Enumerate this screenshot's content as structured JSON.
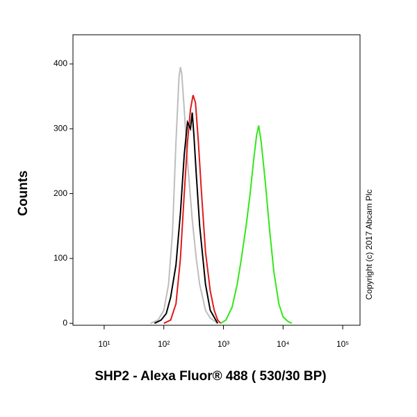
{
  "chart_data": {
    "type": "line",
    "xlabel": "SHP2 - Alexa Fluor® 488 ( 530/30 BP)",
    "ylabel": "Counts",
    "annotation": "Copyright (c) 2017 Abcam Plc",
    "log_x": true,
    "xlim": [
      3,
      195000
    ],
    "ylim": [
      -3,
      445
    ],
    "xticks": [
      {
        "value": 10,
        "label": "10¹"
      },
      {
        "value": 100,
        "label": "10²"
      },
      {
        "value": 1000,
        "label": "10³"
      },
      {
        "value": 10000,
        "label": "10⁴"
      },
      {
        "value": 100000,
        "label": "10⁵"
      }
    ],
    "yticks": [
      0,
      100,
      200,
      300,
      400
    ],
    "series": [
      {
        "color": "#bdbdbd",
        "x": [
          60,
          80,
          100,
          120,
          140,
          160,
          180,
          190,
          200,
          220,
          250,
          300,
          350,
          400,
          500,
          600,
          800
        ],
        "values": [
          0,
          5,
          20,
          60,
          140,
          280,
          380,
          395,
          385,
          330,
          250,
          160,
          100,
          60,
          20,
          8,
          0
        ]
      },
      {
        "color": "#e0191b",
        "x": [
          100,
          130,
          160,
          190,
          220,
          250,
          280,
          310,
          340,
          380,
          430,
          500,
          600,
          700,
          800,
          900
        ],
        "values": [
          0,
          5,
          30,
          100,
          200,
          280,
          330,
          352,
          340,
          280,
          200,
          110,
          50,
          20,
          5,
          0
        ]
      },
      {
        "color": "#000000",
        "x": [
          70,
          90,
          110,
          130,
          160,
          190,
          220,
          250,
          280,
          300,
          320,
          350,
          400,
          500,
          600,
          800
        ],
        "values": [
          0,
          5,
          15,
          40,
          90,
          170,
          260,
          310,
          300,
          325,
          290,
          230,
          150,
          60,
          20,
          0
        ]
      },
      {
        "color": "#33e619",
        "x": [
          900,
          1100,
          1400,
          1700,
          2000,
          2400,
          2800,
          3200,
          3600,
          3900,
          4300,
          5000,
          6000,
          7000,
          8500,
          10000,
          12000,
          14000
        ],
        "values": [
          0,
          5,
          25,
          60,
          100,
          150,
          200,
          250,
          290,
          305,
          280,
          220,
          140,
          80,
          30,
          10,
          3,
          0
        ]
      }
    ]
  }
}
